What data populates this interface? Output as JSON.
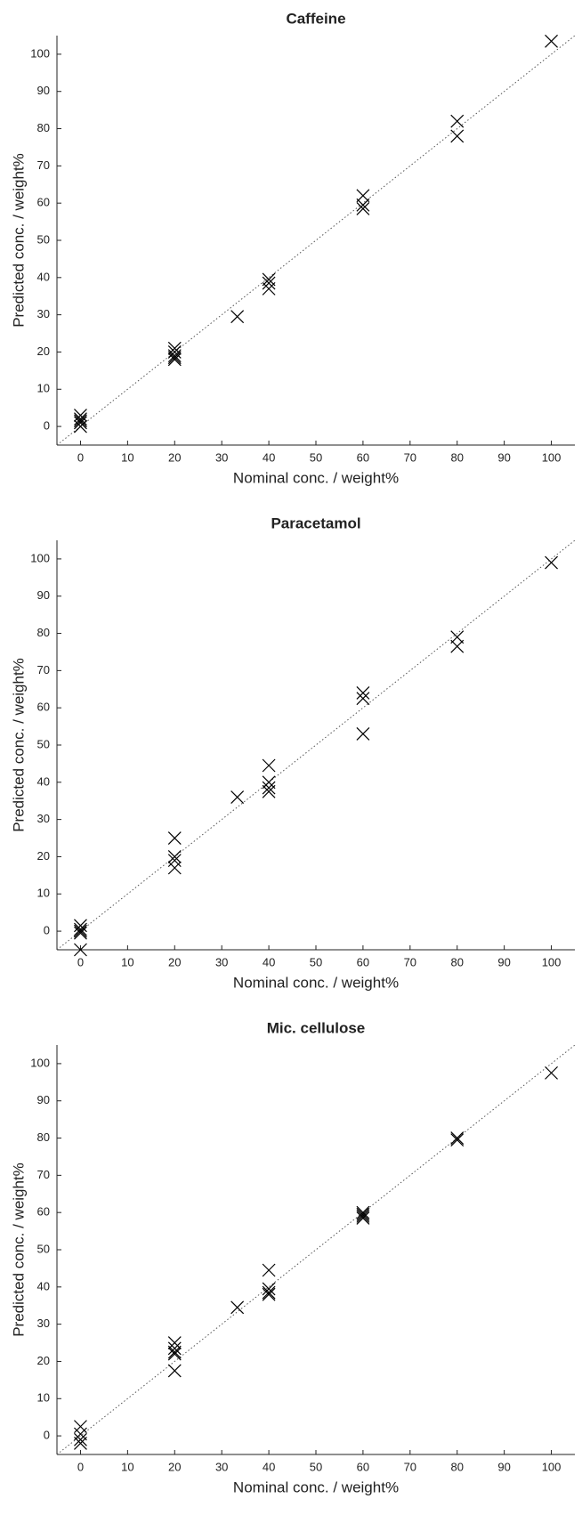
{
  "chart_data": [
    {
      "type": "scatter",
      "title": "Caffeine",
      "x_label": "Nominal conc. / weight%",
      "y_label": "Predicted conc. / weight%",
      "color": "#000000",
      "xlim": [
        -5,
        105
      ],
      "ylim": [
        -5,
        105
      ],
      "xticks": [
        0,
        10,
        20,
        30,
        40,
        50,
        60,
        70,
        80,
        90,
        100
      ],
      "yticks": [
        0,
        10,
        20,
        30,
        40,
        50,
        60,
        70,
        80,
        90,
        100
      ],
      "x": [
        0,
        0,
        0,
        0,
        0,
        20,
        20,
        20,
        20,
        20,
        33.3,
        40,
        40,
        40,
        60,
        60,
        60,
        80,
        80,
        100
      ],
      "y": [
        3,
        2,
        1.5,
        1,
        0,
        21,
        20,
        19,
        18.5,
        18,
        29.5,
        39.5,
        38.5,
        37,
        62,
        59.5,
        58.5,
        82,
        78,
        103.5
      ]
    },
    {
      "type": "scatter",
      "title": "Paracetamol",
      "x_label": "Nominal conc. / weight%",
      "y_label": "Predicted conc. / weight%",
      "color": "#000000",
      "xlim": [
        -5,
        105
      ],
      "ylim": [
        -5,
        105
      ],
      "xticks": [
        0,
        10,
        20,
        30,
        40,
        50,
        60,
        70,
        80,
        90,
        100
      ],
      "yticks": [
        0,
        10,
        20,
        30,
        40,
        50,
        60,
        70,
        80,
        90,
        100
      ],
      "x": [
        0,
        0,
        0,
        0,
        0,
        20,
        20,
        20,
        20,
        33.3,
        40,
        40,
        40,
        40,
        60,
        60,
        60,
        80,
        80,
        100
      ],
      "y": [
        1.5,
        0.5,
        0,
        -0.5,
        -5,
        25,
        20,
        19,
        17,
        36,
        44.5,
        40,
        38.5,
        37.5,
        64,
        62.5,
        53,
        79,
        76.5,
        99
      ]
    },
    {
      "type": "scatter",
      "title": "Mic. cellulose",
      "x_label": "Nominal conc. / weight%",
      "y_label": "Predicted conc. / weight%",
      "color": "#000000",
      "xlim": [
        -5,
        105
      ],
      "ylim": [
        -5,
        105
      ],
      "xticks": [
        0,
        10,
        20,
        30,
        40,
        50,
        60,
        70,
        80,
        90,
        100
      ],
      "yticks": [
        0,
        10,
        20,
        30,
        40,
        50,
        60,
        70,
        80,
        90,
        100
      ],
      "x": [
        0,
        0,
        0,
        0,
        20,
        20,
        20,
        20,
        20,
        33.3,
        40,
        40,
        40,
        40,
        60,
        60,
        60,
        60,
        80,
        80,
        100
      ],
      "y": [
        2.5,
        0.5,
        -1,
        -2,
        25,
        23.5,
        22.5,
        22,
        17.5,
        34.5,
        44.5,
        39.5,
        38.5,
        38,
        60,
        59.5,
        59,
        58.5,
        80,
        79.5,
        97.5
      ]
    }
  ]
}
